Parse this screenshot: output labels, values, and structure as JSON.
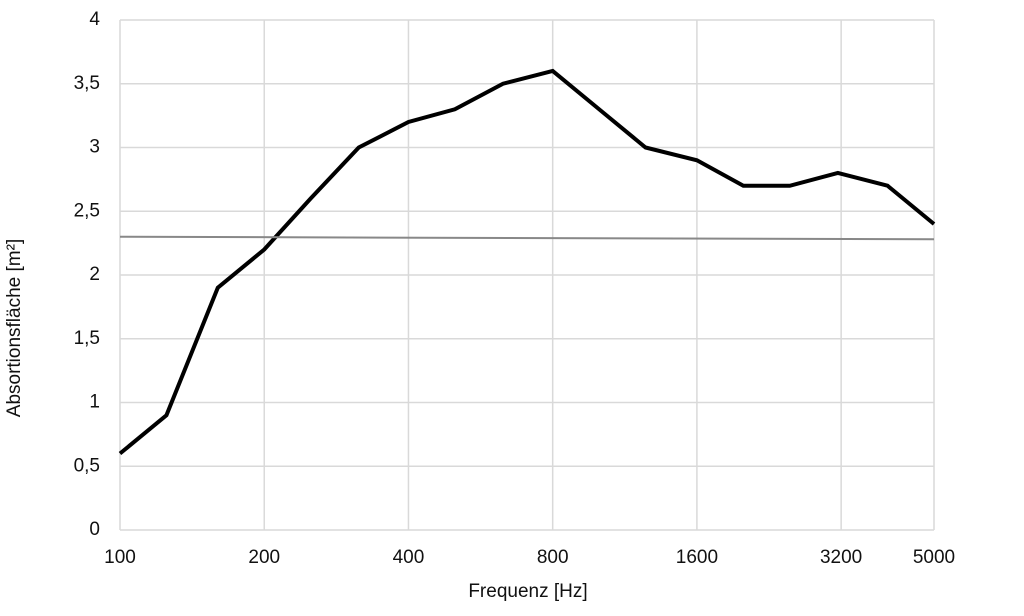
{
  "chart_data": {
    "type": "line",
    "x_label": "Frequenz [Hz]",
    "y_label": "Absortionsfläche [m²]",
    "x_scale": "log",
    "grid": true,
    "xlim": [
      100,
      5000
    ],
    "xticks": [
      100,
      200,
      400,
      800,
      1600,
      3200,
      5000
    ],
    "ylim": [
      0,
      4
    ],
    "yticks": [
      0,
      {
        "value": 0.5,
        "label": "0,5"
      },
      1,
      {
        "value": 1.5,
        "label": "1,5"
      },
      2,
      {
        "value": 2.5,
        "label": "2,5"
      },
      3,
      {
        "value": 3.5,
        "label": "3,5"
      },
      4
    ],
    "series": [
      {
        "color": "#000000",
        "width": 4,
        "x": [
          100,
          125,
          160,
          200,
          250,
          315,
          400,
          500,
          630,
          800,
          1000,
          1250,
          1600,
          2000,
          2500,
          3150,
          4000,
          5000
        ],
        "values": [
          0.6,
          0.9,
          1.9,
          2.2,
          2.6,
          3.0,
          3.2,
          3.3,
          3.5,
          3.6,
          3.3,
          3.0,
          2.9,
          2.7,
          2.7,
          2.8,
          2.7,
          2.4
        ]
      },
      {
        "color": "#888888",
        "width": 2,
        "x": [
          100,
          5000
        ],
        "values": [
          2.3,
          2.28
        ]
      }
    ]
  }
}
